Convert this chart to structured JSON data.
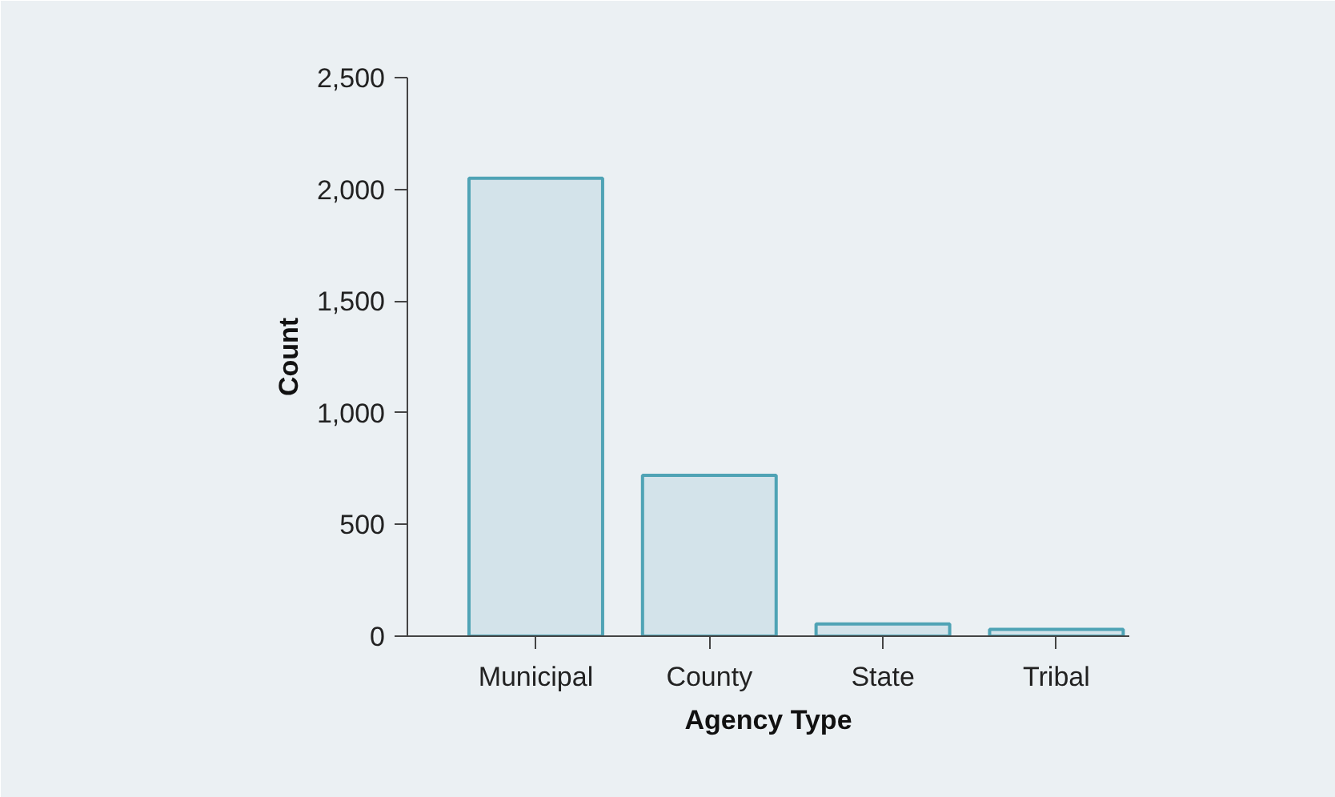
{
  "chart_data": {
    "type": "bar",
    "xlabel": "Agency Type",
    "ylabel": "Count",
    "categories": [
      "Municipal",
      "County",
      "State",
      "Tribal"
    ],
    "values": [
      2050,
      720,
      55,
      30
    ],
    "color": "#d3e3ea",
    "ylim": [
      0,
      2500
    ],
    "yticks": [
      0,
      500,
      {
        "value": 1000,
        "label": "1,000"
      },
      {
        "value": 1500,
        "label": "1,500"
      },
      {
        "value": 2000,
        "label": "2,000"
      },
      {
        "value": 2500,
        "label": "2,500"
      }
    ],
    "grid": false
  }
}
